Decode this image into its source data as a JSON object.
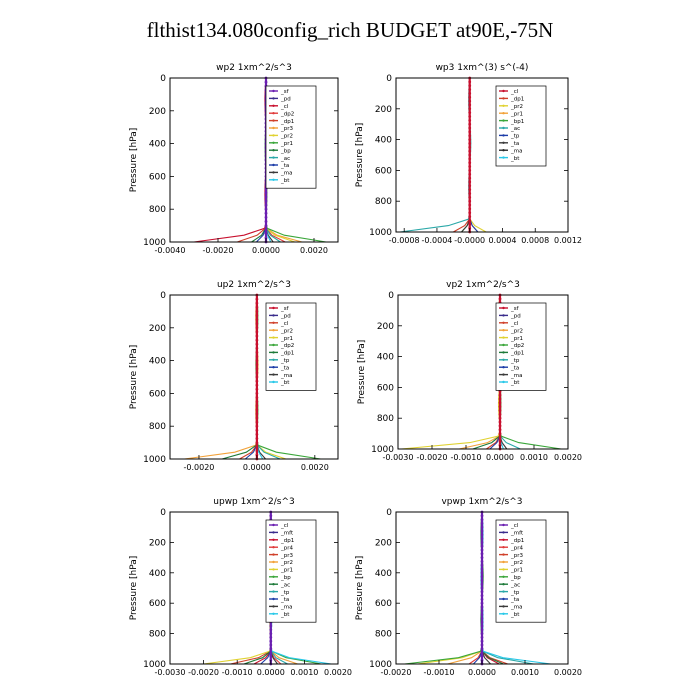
{
  "title": "flthist134.080config_rich  BUDGET at90E,-75N",
  "chart_data": [
    {
      "type": "line",
      "title": "wp2  1xm^2/s^3",
      "ylabel": "Pressure [hPa]",
      "xlim": [
        -0.004,
        0.003
      ],
      "ylim": [
        1000,
        0
      ],
      "x_ticks": [
        "-0.0040",
        "-0.0020",
        "0.0000",
        "0.0020"
      ],
      "x_tick_values": [
        -0.004,
        -0.002,
        0.0,
        0.002
      ],
      "y_ticks": [
        "0",
        "200",
        "400",
        "600",
        "800",
        "1000"
      ],
      "y_tick_values": [
        0,
        200,
        400,
        600,
        800,
        1000
      ],
      "legend_position": "top-right",
      "series": [
        {
          "name": "_sf",
          "color": "#6a1fb0",
          "peak": 0.0
        },
        {
          "name": "_pd",
          "color": "#3a2c8c",
          "peak": 0.0
        },
        {
          "name": "_cl",
          "color": "#c8102e",
          "peak": -0.003
        },
        {
          "name": "_dp2",
          "color": "#e03c3c",
          "peak": 0.0008
        },
        {
          "name": "_dp1",
          "color": "#d0402a",
          "peak": -0.0012
        },
        {
          "name": "_pr3",
          "color": "#f2a23a",
          "peak": 0.0015
        },
        {
          "name": "_pr2",
          "color": "#e0d232",
          "peak": 0.0012
        },
        {
          "name": "_pr1",
          "color": "#3aa63a",
          "peak": 0.0025
        },
        {
          "name": "_bp",
          "color": "#1e7a3a",
          "peak": -0.0006
        },
        {
          "name": "_ac",
          "color": "#2aa8a8",
          "peak": 0.0006
        },
        {
          "name": "_ta",
          "color": "#1c3ca8",
          "peak": -0.0004
        },
        {
          "name": "_ma",
          "color": "#3a3a3a",
          "peak": 0.0003
        },
        {
          "name": "_bt",
          "color": "#28c8e8",
          "peak": 0.0002
        }
      ]
    },
    {
      "type": "line",
      "title": "wp3  1xm^(3) s^(-4)",
      "ylabel": "Pressure [hPa]",
      "xlim": [
        -0.0009,
        0.0012
      ],
      "ylim": [
        1000,
        0
      ],
      "x_ticks": [
        "-0.0008",
        "-0.0004",
        "-0.0000",
        "0.0004",
        "0.0008",
        "0.0012"
      ],
      "x_tick_values": [
        -0.0008,
        -0.0004,
        0.0,
        0.0004,
        0.0008,
        0.0012
      ],
      "y_ticks": [
        "0",
        "200",
        "400",
        "600",
        "800",
        "1000"
      ],
      "y_tick_values": [
        0,
        200,
        400,
        600,
        800,
        1000
      ],
      "legend_position": "top-right",
      "series": [
        {
          "name": "_cl",
          "color": "#c8102e",
          "peak": 0.0
        },
        {
          "name": "_dp1",
          "color": "#d0402a",
          "peak": -0.0002
        },
        {
          "name": "_pr2",
          "color": "#e0d232",
          "peak": 0.0002
        },
        {
          "name": "_pr1",
          "color": "#f2a23a",
          "peak": 0.0001
        },
        {
          "name": "_bp1",
          "color": "#3aa63a",
          "peak": -0.0001
        },
        {
          "name": "_ac",
          "color": "#2aa8a8",
          "peak": -0.00085
        },
        {
          "name": "_tp",
          "color": "#1c3ca8",
          "peak": 0.0001
        },
        {
          "name": "_ta",
          "color": "#3a3a3a",
          "peak": -0.0001
        },
        {
          "name": "_ma",
          "color": "#2a2a2a",
          "peak": 0.0
        },
        {
          "name": "_bt",
          "color": "#28c8e8",
          "peak": 0.0
        }
      ]
    },
    {
      "type": "line",
      "title": "up2  1xm^2/s^3",
      "ylabel": "Pressure [hPa]",
      "xlim": [
        -0.003,
        0.0028
      ],
      "ylim": [
        1000,
        0
      ],
      "x_ticks": [
        "-0.0020",
        "0.0000",
        "0.0020"
      ],
      "x_tick_values": [
        -0.002,
        0.0,
        0.002
      ],
      "y_ticks": [
        "0",
        "200",
        "400",
        "600",
        "800",
        "1000"
      ],
      "y_tick_values": [
        0,
        200,
        400,
        600,
        800,
        1000
      ],
      "legend_position": "top-right",
      "series": [
        {
          "name": "_sf",
          "color": "#c8102e",
          "peak": 0.0
        },
        {
          "name": "_pd",
          "color": "#3a2c8c",
          "peak": 0.0
        },
        {
          "name": "_cl",
          "color": "#d0402a",
          "peak": -0.0006
        },
        {
          "name": "_pr2",
          "color": "#f2a23a",
          "peak": -0.0025
        },
        {
          "name": "_pr1",
          "color": "#e0d232",
          "peak": 0.001
        },
        {
          "name": "_dp2",
          "color": "#3aa63a",
          "peak": 0.0022
        },
        {
          "name": "_dp1",
          "color": "#1e7a3a",
          "peak": -0.0012
        },
        {
          "name": "_tp",
          "color": "#2aa8a8",
          "peak": 0.0008
        },
        {
          "name": "_ta",
          "color": "#1c3ca8",
          "peak": -0.0004
        },
        {
          "name": "_ma",
          "color": "#3a3a3a",
          "peak": 0.0003
        },
        {
          "name": "_bt",
          "color": "#28c8e8",
          "peak": 0.0002
        }
      ]
    },
    {
      "type": "line",
      "title": "vp2  1xm^2/s^3",
      "ylabel": "Pressure [hPa]",
      "xlim": [
        -0.003,
        0.002
      ],
      "ylim": [
        1000,
        0
      ],
      "x_ticks": [
        "-0.0030",
        "-0.0020",
        "-0.0010",
        "0.0000",
        "0.0010",
        "0.0020"
      ],
      "x_tick_values": [
        -0.003,
        -0.002,
        -0.001,
        0.0,
        0.001,
        0.002
      ],
      "y_ticks": [
        "0",
        "200",
        "400",
        "600",
        "800",
        "1000"
      ],
      "y_tick_values": [
        0,
        200,
        400,
        600,
        800,
        1000
      ],
      "legend_position": "top-right",
      "series": [
        {
          "name": "_sf",
          "color": "#c8102e",
          "peak": 0.0
        },
        {
          "name": "_pd",
          "color": "#3a2c8c",
          "peak": 0.0
        },
        {
          "name": "_cl",
          "color": "#d0402a",
          "peak": -0.0004
        },
        {
          "name": "_pr2",
          "color": "#f2a23a",
          "peak": -0.0012
        },
        {
          "name": "_pr1",
          "color": "#e0d232",
          "peak": -0.0029
        },
        {
          "name": "_dp2",
          "color": "#3aa63a",
          "peak": 0.0018
        },
        {
          "name": "_dp1",
          "color": "#1e7a3a",
          "peak": -0.0008
        },
        {
          "name": "_tp",
          "color": "#2aa8a8",
          "peak": 0.0006
        },
        {
          "name": "_ta",
          "color": "#1c3ca8",
          "peak": -0.0003
        },
        {
          "name": "_ma",
          "color": "#3a3a3a",
          "peak": 0.0002
        },
        {
          "name": "_bt",
          "color": "#28c8e8",
          "peak": 0.0001
        }
      ]
    },
    {
      "type": "line",
      "title": "upwp  1xm^2/s^3",
      "ylabel": "Pressure [hPa]",
      "xlim": [
        -0.003,
        0.002
      ],
      "ylim": [
        1000,
        0
      ],
      "x_ticks": [
        "-0.0030",
        "-0.0020",
        "-0.0010",
        "0.0000",
        "0.0010",
        "0.0020"
      ],
      "x_tick_values": [
        -0.003,
        -0.002,
        -0.001,
        0.0,
        0.001,
        0.002
      ],
      "y_ticks": [
        "0",
        "200",
        "400",
        "600",
        "800",
        "1000"
      ],
      "y_tick_values": [
        0,
        200,
        400,
        600,
        800,
        1000
      ],
      "legend_position": "top-right",
      "series": [
        {
          "name": "_cl",
          "color": "#6a1fb0",
          "peak": 0.0
        },
        {
          "name": "_mft",
          "color": "#3a2c8c",
          "peak": 0.0
        },
        {
          "name": "_dp1",
          "color": "#c8102e",
          "peak": -0.0005
        },
        {
          "name": "_pr4",
          "color": "#e03c3c",
          "peak": 0.0003
        },
        {
          "name": "_pr3",
          "color": "#d0402a",
          "peak": -0.0012
        },
        {
          "name": "_pr2",
          "color": "#f2a23a",
          "peak": 0.0008
        },
        {
          "name": "_pr1",
          "color": "#e0d232",
          "peak": -0.002
        },
        {
          "name": "_bp",
          "color": "#3aa63a",
          "peak": 0.0015
        },
        {
          "name": "_ac",
          "color": "#1e7a3a",
          "peak": -0.0008
        },
        {
          "name": "_tp",
          "color": "#2aa8a8",
          "peak": 0.0005
        },
        {
          "name": "_ta",
          "color": "#1c3ca8",
          "peak": -0.0003
        },
        {
          "name": "_ma",
          "color": "#3a3a3a",
          "peak": 0.0002
        },
        {
          "name": "_bt",
          "color": "#28c8e8",
          "peak": 0.0018
        }
      ]
    },
    {
      "type": "line",
      "title": "vpwp  1xm^2/s^3",
      "ylabel": "Pressure [hPa]",
      "xlim": [
        -0.002,
        0.002
      ],
      "ylim": [
        1000,
        0
      ],
      "x_ticks": [
        "-0.0020",
        "-0.0010",
        "0.0000",
        "0.0010",
        "0.0020"
      ],
      "x_tick_values": [
        -0.002,
        -0.001,
        0.0,
        0.001,
        0.002
      ],
      "y_ticks": [
        "0",
        "200",
        "400",
        "600",
        "800",
        "1000"
      ],
      "y_tick_values": [
        0,
        200,
        400,
        600,
        800,
        1000
      ],
      "legend_position": "top-right",
      "series": [
        {
          "name": "_cl",
          "color": "#6a1fb0",
          "peak": 0.0
        },
        {
          "name": "_mft",
          "color": "#3a2c8c",
          "peak": 0.0
        },
        {
          "name": "_dp1",
          "color": "#c8102e",
          "peak": 0.0004
        },
        {
          "name": "_pr4",
          "color": "#e03c3c",
          "peak": -0.0003
        },
        {
          "name": "_pr3",
          "color": "#d0402a",
          "peak": 0.0006
        },
        {
          "name": "_pr2",
          "color": "#f2a23a",
          "peak": -0.0008
        },
        {
          "name": "_pr1",
          "color": "#e0d232",
          "peak": -0.0015
        },
        {
          "name": "_bp",
          "color": "#3aa63a",
          "peak": -0.0018
        },
        {
          "name": "_ac",
          "color": "#1e7a3a",
          "peak": 0.0005
        },
        {
          "name": "_tp",
          "color": "#2aa8a8",
          "peak": 0.0012
        },
        {
          "name": "_ta",
          "color": "#1c3ca8",
          "peak": -0.0002
        },
        {
          "name": "_ma",
          "color": "#3a3a3a",
          "peak": 0.0002
        },
        {
          "name": "_bt",
          "color": "#28c8e8",
          "peak": 0.0016
        }
      ]
    }
  ]
}
